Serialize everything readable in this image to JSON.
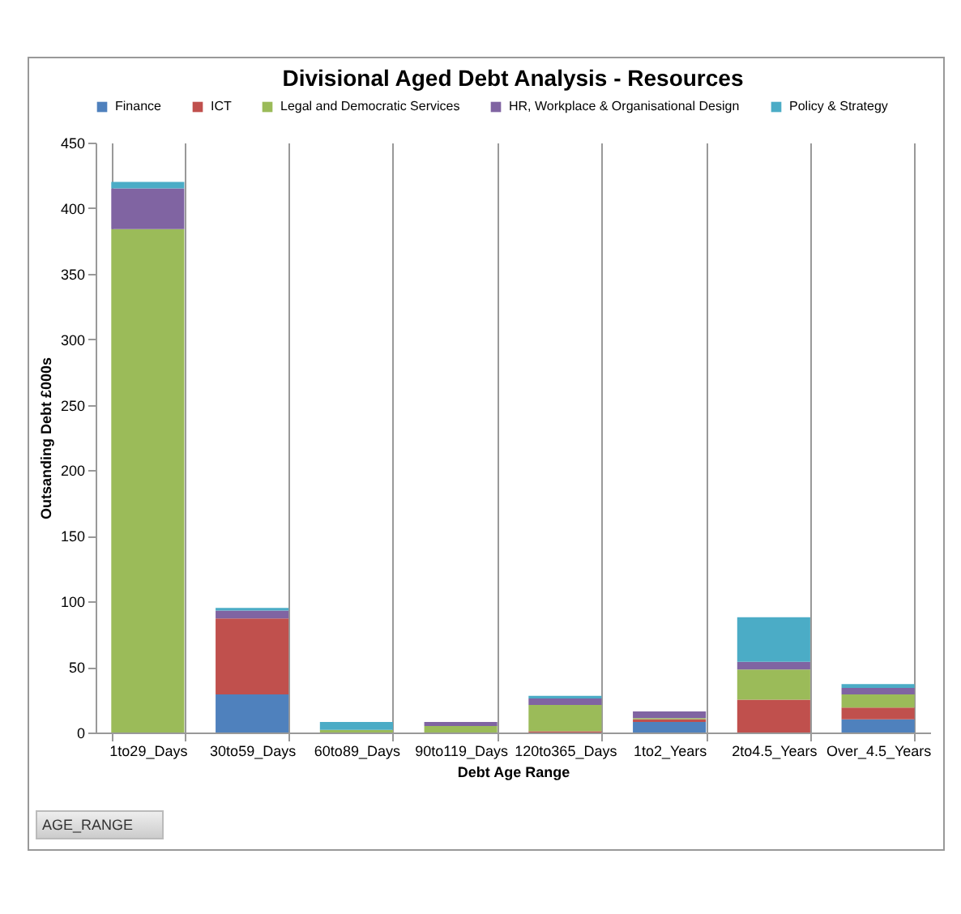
{
  "chart_data": {
    "type": "bar",
    "stacked": true,
    "title": "Divisional Aged Debt Analysis - Resources",
    "xlabel": "Debt Age Range",
    "ylabel": "Outsanding Debt £000s",
    "categories": [
      "1to29_Days",
      "30to59_Days",
      "60to89_Days",
      "90to119_Days",
      "120to365_Days",
      "1to2_Years",
      "2to4.5_Years",
      "Over_4.5_Years"
    ],
    "series": [
      {
        "name": "Finance",
        "color": "#4f81bd",
        "values": [
          0,
          29,
          0,
          0,
          0,
          8,
          0,
          10
        ]
      },
      {
        "name": "ICT",
        "color": "#c0504d",
        "values": [
          0,
          58,
          0,
          0,
          1,
          2,
          25,
          9
        ]
      },
      {
        "name": "Legal and Democratic Services",
        "color": "#9bbb59",
        "values": [
          384,
          0,
          2,
          5,
          20,
          1,
          23,
          10
        ]
      },
      {
        "name": "HR, Workplace & Organisational Design",
        "color": "#8064a2",
        "values": [
          31,
          6,
          0,
          3,
          5,
          5,
          6,
          5
        ]
      },
      {
        "name": "Policy & Strategy",
        "color": "#4bacc6",
        "values": [
          5,
          2,
          6,
          0,
          2,
          0,
          34,
          3
        ]
      }
    ],
    "ylim": [
      0,
      450
    ],
    "yticks": [
      0,
      50,
      100,
      150,
      200,
      250,
      300,
      350,
      400,
      450
    ],
    "grid": "x",
    "legend": "top",
    "annotations": [
      "AGE_RANGE"
    ]
  }
}
